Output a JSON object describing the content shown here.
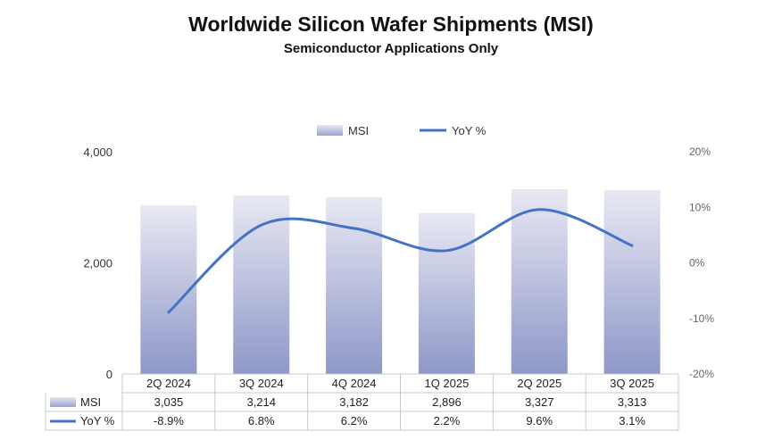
{
  "chart_data": {
    "type": "bar",
    "title": "Worldwide Silicon Wafer Shipments (MSI)",
    "subtitle": "Semiconductor Applications Only",
    "categories": [
      "2Q 2024",
      "3Q 2024",
      "4Q 2024",
      "1Q 2025",
      "2Q 2025",
      "3Q 2025"
    ],
    "series": [
      {
        "name": "MSI",
        "type": "bar",
        "axis": "left",
        "values": [
          3035,
          3214,
          3182,
          2896,
          3327,
          3313
        ],
        "labels": [
          "3,035",
          "3,214",
          "3,182",
          "2,896",
          "3,327",
          "3,313"
        ],
        "color_top": "#e8e9f3",
        "color_bottom": "#8e97c8"
      },
      {
        "name": "YoY %",
        "type": "line",
        "axis": "right",
        "values": [
          -8.9,
          6.8,
          6.2,
          2.2,
          9.6,
          3.1
        ],
        "labels": [
          "-8.9%",
          "6.8%",
          "6.2%",
          "2.2%",
          "9.6%",
          "3.1%"
        ],
        "color": "#4472c4"
      }
    ],
    "y_left": {
      "range": [
        0,
        4000
      ],
      "ticks": [
        0,
        2000,
        4000
      ],
      "tick_labels": [
        "0",
        "2,000",
        "4,000"
      ]
    },
    "y_right": {
      "range": [
        -20,
        20
      ],
      "ticks": [
        -20,
        -10,
        0,
        10,
        20
      ],
      "tick_labels": [
        "-20%",
        "-10%",
        "0%",
        "10%",
        "20%"
      ]
    },
    "legend_position": "top-center",
    "data_table": true,
    "grid": false
  }
}
